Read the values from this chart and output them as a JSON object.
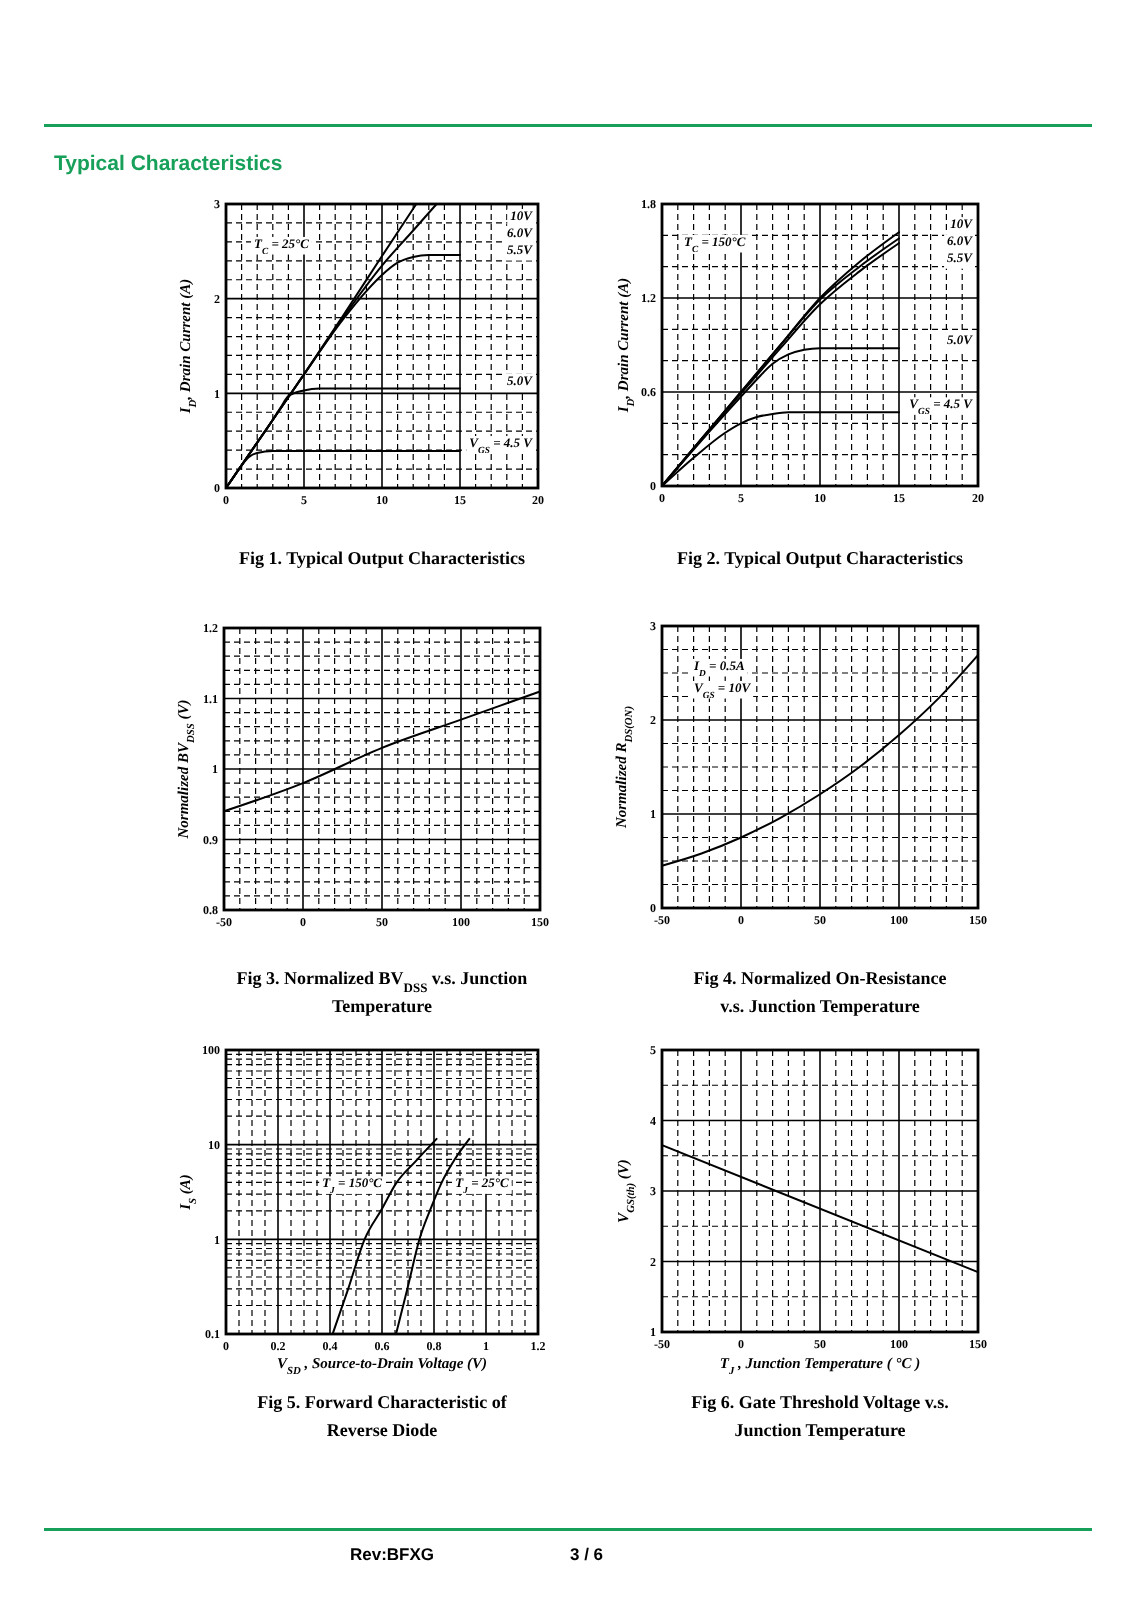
{
  "chart_data": [
    {
      "type": "line",
      "title": "Fig 1. Typical Output Characteristics",
      "ylabel": "I$_{D}$, Drain Current (A)",
      "annotations": [
        "Typical Characteristics",
        "T$_{C}$ = 25°C"
      ],
      "xlim": [
        0,
        20
      ],
      "xticks": [
        0,
        {
          "value": 1,
          "label": null
        },
        {
          "value": 2,
          "label": null
        },
        {
          "value": 3,
          "label": null
        },
        {
          "value": 4,
          "label": null
        },
        5,
        {
          "value": 6,
          "label": null
        },
        {
          "value": 7,
          "label": null
        },
        {
          "value": 8,
          "label": null
        },
        {
          "value": 9,
          "label": null
        },
        10,
        {
          "value": 11,
          "label": null
        },
        {
          "value": 12,
          "label": null
        },
        {
          "value": 13,
          "label": null
        },
        {
          "value": 14,
          "label": null
        },
        15,
        {
          "value": 16,
          "label": null
        },
        {
          "value": 17,
          "label": null
        },
        {
          "value": 18,
          "label": null
        },
        {
          "value": 19,
          "label": null
        },
        20
      ],
      "ylim": [
        0,
        3
      ],
      "yticks": [
        0,
        {
          "value": 0.2,
          "label": null
        },
        {
          "value": 0.4,
          "label": null
        },
        {
          "value": 0.6,
          "label": null
        },
        {
          "value": 0.8,
          "label": null
        },
        1,
        {
          "value": 1.2,
          "label": null
        },
        {
          "value": 1.4,
          "label": null
        },
        {
          "value": 1.6,
          "label": null
        },
        {
          "value": 1.8,
          "label": null
        },
        2,
        {
          "value": 2.2,
          "label": null
        },
        {
          "value": 2.4,
          "label": null
        },
        {
          "value": 2.6,
          "label": null
        },
        {
          "value": 2.8,
          "label": null
        },
        3
      ],
      "grid": true,
      "series": [
        {
          "name": "10V",
          "color": "#000000",
          "x": [
            0,
            2.5,
            5,
            7.5,
            10,
            12.2
          ],
          "values": [
            0,
            0.6,
            1.2,
            1.82,
            2.45,
            3.0
          ]
        },
        {
          "name": "6.0V",
          "color": "#000000",
          "x": [
            0,
            2.5,
            5,
            7.5,
            10,
            12,
            13.5
          ],
          "values": [
            0,
            0.6,
            1.2,
            1.8,
            2.35,
            2.72,
            3.0
          ]
        },
        {
          "name": "5.5V",
          "color": "#000000",
          "x": [
            0,
            2.5,
            5,
            7.5,
            9,
            10,
            11,
            12,
            13,
            15
          ],
          "values": [
            0,
            0.6,
            1.2,
            1.78,
            2.08,
            2.25,
            2.38,
            2.44,
            2.46,
            2.46
          ]
        },
        {
          "name": "5.0V",
          "color": "#000000",
          "x": [
            0,
            1,
            2,
            3,
            3.5,
            4,
            5,
            6,
            15
          ],
          "values": [
            0,
            0.24,
            0.48,
            0.72,
            0.85,
            0.97,
            1.03,
            1.05,
            1.05
          ]
        },
        {
          "name": "V$_{GS}$ = 4.5 V",
          "color": "#000000",
          "x": [
            0,
            0.5,
            1,
            1.5,
            2,
            3,
            15
          ],
          "values": [
            0,
            0.12,
            0.24,
            0.33,
            0.37,
            0.39,
            0.39
          ]
        }
      ]
    },
    {
      "type": "line",
      "title": "Fig 2. Typical Output Characteristics",
      "ylabel": "I$_{D}$, Drain Current (A)",
      "annotations": [
        "T$_{C}$ = 150°C"
      ],
      "xlim": [
        0,
        20
      ],
      "xticks": [
        0,
        {
          "value": 1,
          "label": null
        },
        {
          "value": 2,
          "label": null
        },
        {
          "value": 3,
          "label": null
        },
        {
          "value": 4,
          "label": null
        },
        5,
        {
          "value": 6,
          "label": null
        },
        {
          "value": 7,
          "label": null
        },
        {
          "value": 8,
          "label": null
        },
        {
          "value": 9,
          "label": null
        },
        10,
        {
          "value": 11,
          "label": null
        },
        {
          "value": 12,
          "label": null
        },
        {
          "value": 13,
          "label": null
        },
        {
          "value": 14,
          "label": null
        },
        15,
        {
          "value": 16,
          "label": null
        },
        {
          "value": 17,
          "label": null
        },
        {
          "value": 18,
          "label": null
        },
        {
          "value": 19,
          "label": null
        },
        20
      ],
      "ylim": [
        0,
        1.8
      ],
      "yticks": [
        0,
        {
          "value": 0.2,
          "label": null
        },
        {
          "value": 0.4,
          "label": null
        },
        0.6,
        {
          "value": 0.8,
          "label": null
        },
        {
          "value": 1,
          "label": null
        },
        1.2,
        {
          "value": 1.4,
          "label": null
        },
        {
          "value": 1.6,
          "label": null
        },
        1.8
      ],
      "grid": true,
      "series": [
        {
          "name": "10V",
          "color": "#000000",
          "x": [
            0,
            2.5,
            5,
            7.5,
            10,
            12.5,
            15
          ],
          "values": [
            0,
            0.3,
            0.6,
            0.9,
            1.2,
            1.43,
            1.62
          ]
        },
        {
          "name": "6.0V",
          "color": "#000000",
          "x": [
            0,
            2.5,
            5,
            7.5,
            10,
            12.5,
            15
          ],
          "values": [
            0,
            0.3,
            0.6,
            0.9,
            1.19,
            1.4,
            1.58
          ]
        },
        {
          "name": "5.5V",
          "color": "#000000",
          "x": [
            0,
            2.5,
            5,
            7.5,
            10,
            12.5,
            15
          ],
          "values": [
            0,
            0.3,
            0.59,
            0.88,
            1.16,
            1.37,
            1.55
          ]
        },
        {
          "name": "5.0V",
          "color": "#000000",
          "x": [
            0,
            2.5,
            5,
            6,
            7,
            8,
            9,
            10,
            15
          ],
          "values": [
            0,
            0.29,
            0.57,
            0.68,
            0.78,
            0.84,
            0.87,
            0.88,
            0.88
          ]
        },
        {
          "name": "V$_{GS}$ = 4.5 V",
          "color": "#000000",
          "x": [
            0,
            2,
            4,
            5,
            6,
            7,
            8,
            15
          ],
          "values": [
            0,
            0.18,
            0.34,
            0.4,
            0.44,
            0.46,
            0.47,
            0.47
          ]
        }
      ]
    },
    {
      "type": "line",
      "title": "Fig 3. Normalized BV$_{DSS}$  v.s. Junction\nTemperature",
      "ylabel": "Normalized BV$_{DSS}$ (V)",
      "xlim": [
        -50,
        150
      ],
      "xticks": [
        -50,
        {
          "value": -40,
          "label": null
        },
        {
          "value": -30,
          "label": null
        },
        {
          "value": -20,
          "label": null
        },
        {
          "value": -10,
          "label": null
        },
        0,
        {
          "value": 10,
          "label": null
        },
        {
          "value": 20,
          "label": null
        },
        {
          "value": 30,
          "label": null
        },
        {
          "value": 40,
          "label": null
        },
        50,
        {
          "value": 60,
          "label": null
        },
        {
          "value": 70,
          "label": null
        },
        {
          "value": 80,
          "label": null
        },
        {
          "value": 90,
          "label": null
        },
        100,
        {
          "value": 110,
          "label": null
        },
        {
          "value": 120,
          "label": null
        },
        {
          "value": 130,
          "label": null
        },
        {
          "value": 140,
          "label": null
        },
        150
      ],
      "ylim": [
        0.8,
        1.2
      ],
      "yticks": [
        0.8,
        {
          "value": 0.82,
          "label": null
        },
        {
          "value": 0.84,
          "label": null
        },
        {
          "value": 0.86,
          "label": null
        },
        {
          "value": 0.88,
          "label": null
        },
        0.9,
        {
          "value": 0.92,
          "label": null
        },
        {
          "value": 0.94,
          "label": null
        },
        {
          "value": 0.96,
          "label": null
        },
        {
          "value": 0.98,
          "label": null
        },
        1,
        {
          "value": 1.02,
          "label": null
        },
        {
          "value": 1.04,
          "label": null
        },
        {
          "value": 1.06,
          "label": null
        },
        {
          "value": 1.08,
          "label": null
        },
        1.1,
        {
          "value": 1.12,
          "label": null
        },
        {
          "value": 1.14,
          "label": null
        },
        {
          "value": 1.16,
          "label": null
        },
        {
          "value": 1.18,
          "label": null
        },
        1.2
      ],
      "grid": true,
      "color": "#000000",
      "x": [
        -50,
        0,
        50,
        100,
        150
      ],
      "values": [
        0.94,
        0.98,
        1.03,
        1.07,
        1.11
      ]
    },
    {
      "type": "line",
      "title": "Fig 4. Normalized On-Resistance\nv.s. Junction Temperature",
      "ylabel": "Normalized R$_{DS(ON)}$",
      "annotations": [
        "I$_{D}$ = 0.5A",
        "V$_{GS}$ = 10V"
      ],
      "xlim": [
        -50,
        150
      ],
      "xticks": [
        -50,
        {
          "value": -40,
          "label": null
        },
        {
          "value": -30,
          "label": null
        },
        {
          "value": -20,
          "label": null
        },
        {
          "value": -10,
          "label": null
        },
        0,
        {
          "value": 10,
          "label": null
        },
        {
          "value": 20,
          "label": null
        },
        {
          "value": 30,
          "label": null
        },
        {
          "value": 40,
          "label": null
        },
        50,
        {
          "value": 60,
          "label": null
        },
        {
          "value": 70,
          "label": null
        },
        {
          "value": 80,
          "label": null
        },
        {
          "value": 90,
          "label": null
        },
        100,
        {
          "value": 110,
          "label": null
        },
        {
          "value": 120,
          "label": null
        },
        {
          "value": 130,
          "label": null
        },
        {
          "value": 140,
          "label": null
        },
        150
      ],
      "ylim": [
        0,
        3
      ],
      "yticks": [
        0,
        {
          "value": 0.25,
          "label": null
        },
        {
          "value": 0.5,
          "label": null
        },
        {
          "value": 0.75,
          "label": null
        },
        1,
        {
          "value": 1.25,
          "label": null
        },
        {
          "value": 1.5,
          "label": null
        },
        {
          "value": 1.75,
          "label": null
        },
        2,
        {
          "value": 2.25,
          "label": null
        },
        {
          "value": 2.5,
          "label": null
        },
        {
          "value": 2.75,
          "label": null
        },
        3
      ],
      "grid": true,
      "color": "#000000",
      "x": [
        -50,
        -25,
        0,
        25,
        50,
        75,
        100,
        125,
        150
      ],
      "values": [
        0.45,
        0.58,
        0.75,
        0.96,
        1.21,
        1.5,
        1.84,
        2.23,
        2.69
      ]
    },
    {
      "type": "line",
      "title": "Fig 5. Forward Characteristic of\nReverse Diode",
      "xlabel": "V$_{SD}$ , Source-to-Drain Voltage (V)",
      "ylabel": "I$_{S}$ (A)",
      "log": true,
      "xlim": [
        0,
        1.2
      ],
      "xticks": [
        0,
        {
          "value": 0.05,
          "label": null
        },
        {
          "value": 0.1,
          "label": null
        },
        {
          "value": 0.15,
          "label": null
        },
        0.2,
        {
          "value": 0.25,
          "label": null
        },
        {
          "value": 0.3,
          "label": null
        },
        {
          "value": 0.35,
          "label": null
        },
        0.4,
        {
          "value": 0.45,
          "label": null
        },
        {
          "value": 0.5,
          "label": null
        },
        {
          "value": 0.55,
          "label": null
        },
        0.6,
        {
          "value": 0.65,
          "label": null
        },
        {
          "value": 0.7,
          "label": null
        },
        {
          "value": 0.75,
          "label": null
        },
        0.8,
        {
          "value": 0.85,
          "label": null
        },
        {
          "value": 0.9,
          "label": null
        },
        {
          "value": 0.95,
          "label": null
        },
        1,
        {
          "value": 1.05,
          "label": null
        },
        {
          "value": 1.1,
          "label": null
        },
        {
          "value": 1.15,
          "label": null
        },
        1.2
      ],
      "ylim": [
        0.1,
        100
      ],
      "yticks": [
        0.1,
        {
          "value": 0.2,
          "label": null
        },
        {
          "value": 0.3,
          "label": null
        },
        {
          "value": 0.4,
          "label": null
        },
        {
          "value": 0.5,
          "label": null
        },
        {
          "value": 0.6,
          "label": null
        },
        {
          "value": 0.7,
          "label": null
        },
        {
          "value": 0.8,
          "label": null
        },
        {
          "value": 0.9,
          "label": null
        },
        1,
        {
          "value": 2,
          "label": null
        },
        {
          "value": 3,
          "label": null
        },
        {
          "value": 4,
          "label": null
        },
        {
          "value": 5,
          "label": null
        },
        {
          "value": 6,
          "label": null
        },
        {
          "value": 7,
          "label": null
        },
        {
          "value": 8,
          "label": null
        },
        {
          "value": 9,
          "label": null
        },
        10,
        {
          "value": 20,
          "label": null
        },
        {
          "value": 30,
          "label": null
        },
        {
          "value": 40,
          "label": null
        },
        {
          "value": 50,
          "label": null
        },
        {
          "value": 60,
          "label": null
        },
        {
          "value": 70,
          "label": null
        },
        {
          "value": 80,
          "label": null
        },
        {
          "value": 90,
          "label": null
        },
        100
      ],
      "grid": true,
      "series": [
        {
          "name": "T$_{J}$ = 150°C",
          "color": "#000000",
          "x": [
            0.41,
            0.47,
            0.533,
            0.6,
            0.654,
            0.73,
            0.81
          ],
          "values": [
            0.1,
            0.3,
            1,
            2.1,
            3.9,
            6.7,
            11.5
          ]
        },
        {
          "name": "T$_{J}$ = 25°C",
          "color": "#000000",
          "x": [
            0.654,
            0.7,
            0.744,
            0.79,
            0.828,
            0.88,
            0.936
          ],
          "values": [
            0.1,
            0.32,
            1,
            2.2,
            3.9,
            7,
            11.5
          ]
        }
      ]
    },
    {
      "type": "line",
      "title": "Fig 6. Gate Threshold Voltage v.s.\nJunction Temperature",
      "xlabel": "T$_{J}$ , Junction Temperature ( °C )",
      "ylabel": "V$_{GS(th)}$ (V)",
      "annotations": [
        "Rev:BFXG",
        "3 / 6"
      ],
      "xlim": [
        -50,
        150
      ],
      "xticks": [
        -50,
        {
          "value": -40,
          "label": null
        },
        {
          "value": -30,
          "label": null
        },
        {
          "value": -20,
          "label": null
        },
        {
          "value": -10,
          "label": null
        },
        0,
        {
          "value": 10,
          "label": null
        },
        {
          "value": 20,
          "label": null
        },
        {
          "value": 30,
          "label": null
        },
        {
          "value": 40,
          "label": null
        },
        50,
        {
          "value": 60,
          "label": null
        },
        {
          "value": 70,
          "label": null
        },
        {
          "value": 80,
          "label": null
        },
        {
          "value": 90,
          "label": null
        },
        100,
        {
          "value": 110,
          "label": null
        },
        {
          "value": 120,
          "label": null
        },
        {
          "value": 130,
          "label": null
        },
        {
          "value": 140,
          "label": null
        },
        150
      ],
      "ylim": [
        1,
        5
      ],
      "yticks": [
        1,
        {
          "value": 1.5,
          "label": null
        },
        2,
        {
          "value": 2.5,
          "label": null
        },
        3,
        {
          "value": 3.5,
          "label": null
        },
        4,
        {
          "value": 4.5,
          "label": null
        },
        5
      ],
      "grid": true,
      "color": "#000000",
      "x": [
        -50,
        150
      ],
      "values": [
        3.65,
        1.85
      ]
    }
  ]
}
